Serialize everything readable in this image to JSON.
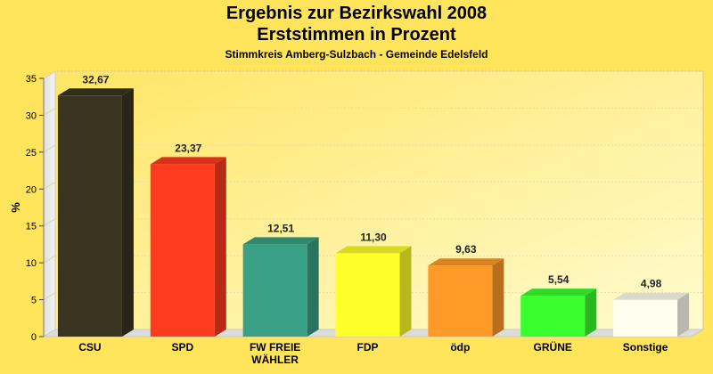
{
  "chart_data": {
    "type": "bar",
    "title": "Ergebnis zur Bezirkswahl 2008",
    "subtitle": "Erststimmen in Prozent",
    "subtitle2": "Stimmkreis Amberg-Sulzbach - Gemeinde Edelsfeld",
    "ylabel": "%",
    "ylim": [
      0,
      35
    ],
    "yticks": [
      0,
      5,
      10,
      15,
      20,
      25,
      30,
      35
    ],
    "grid": true,
    "categories": [
      "CSU",
      "SPD",
      "FW FREIE WÄHLER",
      "FDP",
      "ödp",
      "GRÜNE",
      "Sonstige"
    ],
    "category_lines": [
      [
        "CSU"
      ],
      [
        "SPD"
      ],
      [
        "FW FREIE",
        "WÄHLER"
      ],
      [
        "FDP"
      ],
      [
        "ödp"
      ],
      [
        "GRÜNE"
      ],
      [
        "Sonstige"
      ]
    ],
    "values": [
      32.67,
      23.37,
      12.51,
      11.3,
      9.63,
      5.54,
      4.98
    ],
    "value_labels": [
      "32,67",
      "23,37",
      "12,51",
      "11,30",
      "9,63",
      "5,54",
      "4,98"
    ],
    "colors": [
      "#3a3520",
      "#ff3a1f",
      "#3aa085",
      "#ffff2a",
      "#ff9a28",
      "#3aff2e",
      "#fffff0"
    ]
  }
}
